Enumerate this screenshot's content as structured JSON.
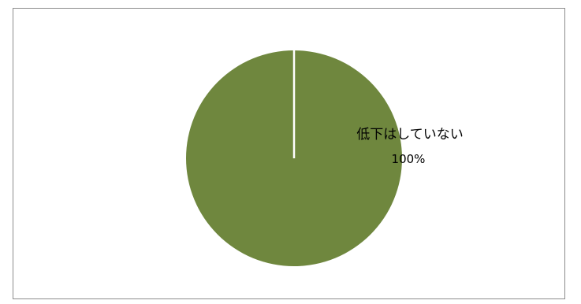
{
  "chart_data": {
    "type": "pie",
    "title": "",
    "slices": [
      {
        "label": "低下はしていない",
        "value": 100,
        "percent_label": "100%",
        "color": "#6f873e"
      }
    ],
    "legend": "none",
    "separator_color": "#ffffff"
  }
}
